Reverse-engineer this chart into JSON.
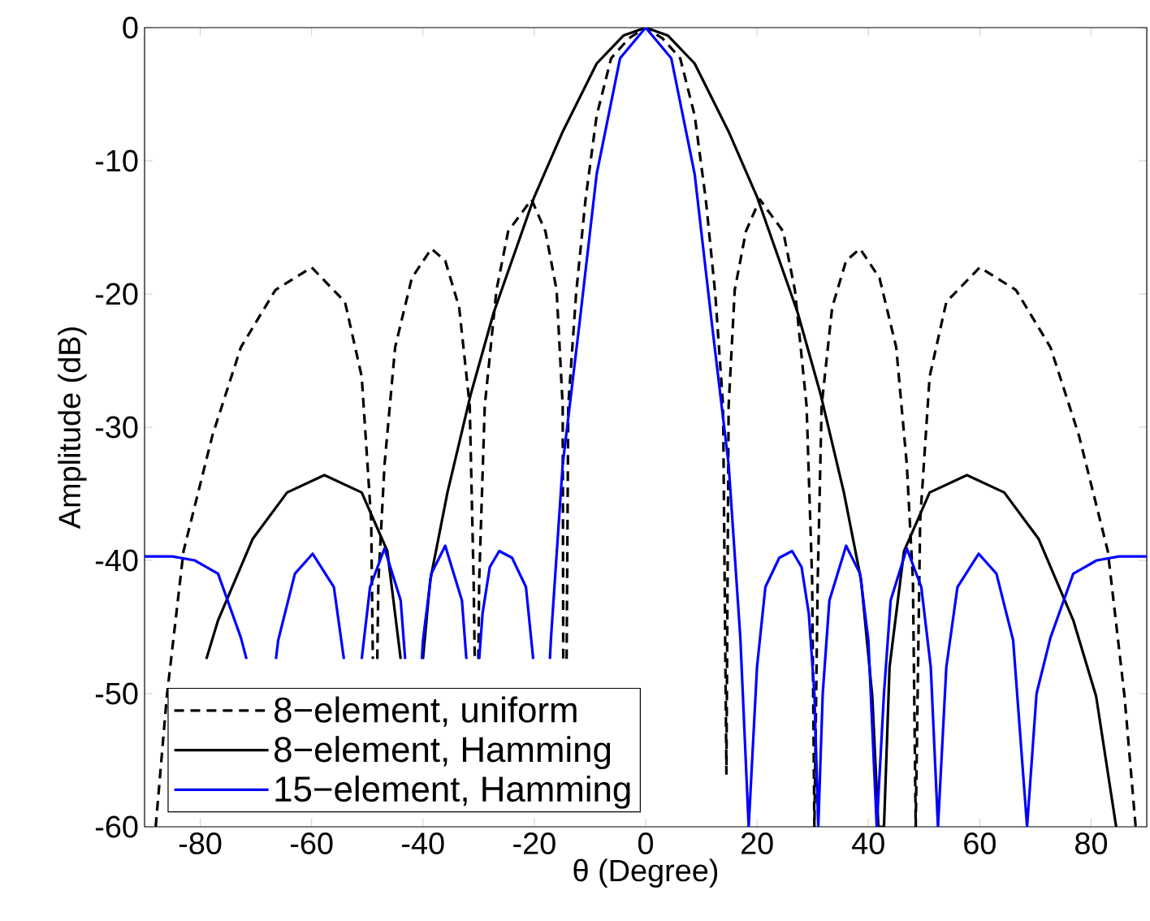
{
  "chart_data": {
    "type": "line",
    "xlabel": "θ (Degree)",
    "ylabel": "Amplitude (dB)",
    "xlim": [
      -90,
      90
    ],
    "ylim": [
      -60,
      0
    ],
    "xticks": [
      -80,
      -60,
      -40,
      -20,
      0,
      20,
      40,
      60,
      80
    ],
    "yticks": [
      -60,
      -50,
      -40,
      -30,
      -20,
      -10,
      0
    ],
    "grid": false,
    "legend": "bottom left",
    "series": [
      {
        "name": "8−element, uniform",
        "color": "#000000",
        "line_style": "dashed",
        "x": [
          -88,
          -86,
          -83,
          -77.8,
          -72.7,
          -66.5,
          -60,
          -54,
          -51,
          -49.3,
          -49.0,
          -48.5,
          -48.2,
          -48,
          -46.9,
          -45,
          -42,
          -38.5,
          -36,
          -33.5,
          -31.6,
          -30.9,
          -30.7,
          -30.3,
          -30.05,
          -29.9,
          -28.9,
          -26.8,
          -24.7,
          -20.5,
          -18,
          -16,
          -14.9,
          -14.8,
          -14.5,
          -14.2,
          -13.9,
          -12.5,
          -10.8,
          -8.8,
          -6.2,
          -3,
          0,
          3,
          6.2,
          8.8,
          10.8,
          12.5,
          13.9,
          14.5,
          14.9,
          16,
          18,
          20.5,
          24.7,
          26.8,
          28.9,
          29.9,
          30.3,
          30.9,
          31.6,
          33.5,
          36,
          38.5,
          42,
          45,
          46.9,
          48,
          48.5,
          49.3,
          51,
          54,
          60,
          66.5,
          72.7,
          77.8,
          83,
          86,
          88
        ],
        "values": [
          -60,
          -50.2,
          -39.3,
          -30.6,
          -24,
          -19.7,
          -18,
          -20.6,
          -26.2,
          -37,
          -47.4,
          null,
          -47.4,
          -41.5,
          -32.8,
          -24,
          -18.8,
          -16.6,
          -17.5,
          -21,
          -28.4,
          -41.5,
          -47.4,
          null,
          -47.4,
          -41.5,
          -28.4,
          -19.7,
          -15.3,
          -12.9,
          -15.3,
          -19.7,
          -28.4,
          -47.4,
          null,
          -47.4,
          -28.4,
          -20,
          -12.9,
          -6.6,
          -2.3,
          -0.8,
          0,
          -0.8,
          -2.3,
          -6.6,
          -12.9,
          -20,
          -28.4,
          -56,
          -28.4,
          -19.7,
          -15.3,
          -12.9,
          -15.3,
          -19.7,
          -28.4,
          -41.5,
          -60,
          -41.5,
          -28.4,
          -21,
          -17.5,
          -16.6,
          -18.8,
          -24,
          -32.8,
          -41.5,
          -60,
          -37,
          -26.2,
          -20.6,
          -18,
          -19.7,
          -24,
          -30.6,
          -39.3,
          -50.2,
          -60
        ]
      },
      {
        "name": "8−element, Hamming",
        "color": "#000000",
        "line_style": "solid",
        "x": [
          -78.9,
          -76.8,
          -70.6,
          -64.4,
          -57.7,
          -51,
          -46.4,
          -44,
          -42.3,
          -40,
          -38.7,
          -35.6,
          -31.4,
          -27.3,
          -20,
          -15,
          -8.8,
          -4,
          0,
          4,
          8.8,
          15,
          20,
          27.3,
          31.4,
          35.6,
          38.7,
          40.7,
          41.8,
          42.8,
          43.8,
          46.4,
          51,
          57.7,
          64.4,
          70.6,
          76.8,
          80.9,
          84.5
        ],
        "values": [
          -47.4,
          -44.5,
          -38.4,
          -34.9,
          -33.6,
          -34.9,
          -39.3,
          -47.4,
          null,
          -47.4,
          -41.5,
          -34.9,
          -27.5,
          -21.4,
          -12.7,
          -7.9,
          -2.7,
          -0.6,
          0,
          -0.6,
          -2.7,
          -7.9,
          -12.7,
          -21.4,
          -27.5,
          -34.9,
          -41.5,
          -50.2,
          -60,
          -60,
          -48,
          -39.3,
          -34.9,
          -33.6,
          -34.9,
          -38.4,
          -44.5,
          -50.2,
          -60
        ]
      },
      {
        "name": "15−element, Hamming",
        "color": "#0000ff",
        "line_style": "solid",
        "x": [
          -90,
          -85,
          -81,
          -76.8,
          -72.7,
          -71.7,
          -69,
          -66.4,
          -66,
          -63,
          -59.8,
          -56,
          -54.2,
          -52.5,
          -51,
          -49.5,
          -46.9,
          -44,
          -43.2,
          -41.5,
          -40.2,
          -40,
          -38.5,
          -36,
          -33,
          -32.2,
          -31,
          -29.9,
          -29.3,
          -28,
          -26.3,
          -24,
          -21.5,
          -20.2,
          -18.5,
          -17.2,
          -17,
          -14.9,
          -11.8,
          -8.8,
          -4.6,
          0,
          4.6,
          8.8,
          11.8,
          14.9,
          17,
          18.5,
          20,
          21.5,
          24,
          26.3,
          28,
          29.3,
          30.3,
          31,
          31.8,
          33,
          36,
          38.5,
          40,
          41.5,
          42.8,
          44,
          46.9,
          49.5,
          51.2,
          52.5,
          54,
          56,
          59.8,
          63,
          66,
          68.5,
          70.2,
          72.7,
          76.8,
          81,
          85,
          90
        ],
        "values": [
          -39.7,
          -39.7,
          -40,
          -41,
          -45.8,
          -47.4,
          null,
          -47.4,
          -46,
          -41,
          -39.5,
          -42,
          -47.4,
          null,
          -47.4,
          -42,
          -39.1,
          -43,
          -47.4,
          null,
          -47.4,
          -46,
          -41,
          -38.9,
          -43,
          -47.4,
          null,
          -47.4,
          -44,
          -40.5,
          -39.3,
          -39.8,
          -42,
          -47.4,
          null,
          -47.4,
          -45.8,
          -32.8,
          -21.9,
          -11,
          -2.3,
          0,
          -2.3,
          -11,
          -21.9,
          -32.8,
          -45.8,
          -60,
          -48,
          -42,
          -39.8,
          -39.3,
          -40.5,
          -44,
          -50,
          -60,
          -50,
          -43,
          -38.9,
          -41,
          -46,
          -60,
          -50,
          -43,
          -39.1,
          -42,
          -48,
          -60,
          -48,
          -42,
          -39.5,
          -41,
          -46,
          -60,
          -50,
          -45.8,
          -41,
          -40,
          -39.7,
          -39.7
        ]
      }
    ]
  }
}
